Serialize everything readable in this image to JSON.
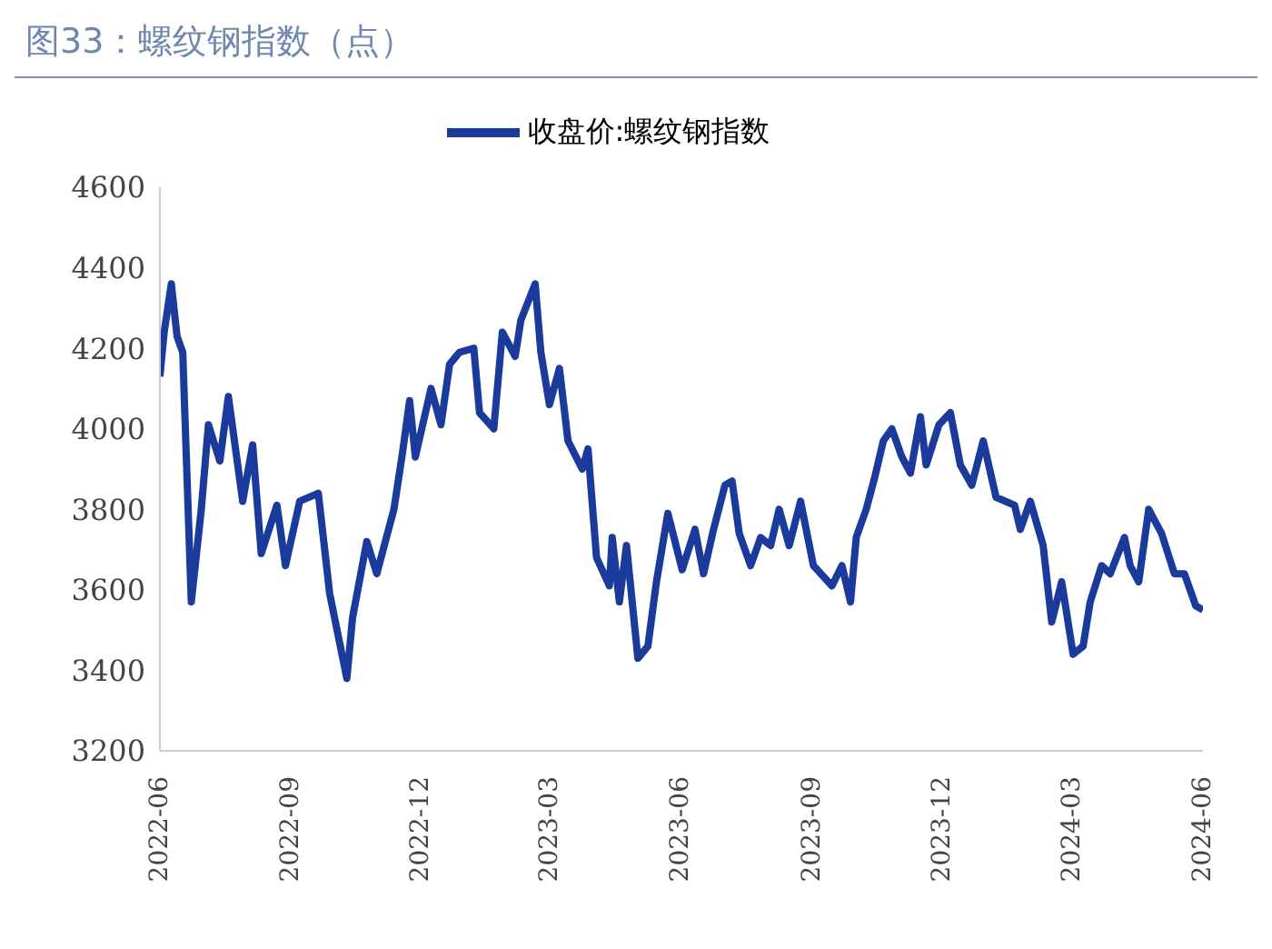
{
  "chart_data": {
    "type": "line",
    "title": "图33：螺纹钢指数（点）",
    "x": [
      "2022-06-01",
      "2022-06-04",
      "2022-06-09",
      "2022-06-13",
      "2022-06-17",
      "2022-06-23",
      "2022-06-30",
      "2022-07-05",
      "2022-07-13",
      "2022-07-19",
      "2022-07-29",
      "2022-08-05",
      "2022-08-11",
      "2022-08-22",
      "2022-08-28",
      "2022-09-07",
      "2022-09-20",
      "2022-09-28",
      "2022-10-10",
      "2022-10-14",
      "2022-10-24",
      "2022-10-31",
      "2022-11-12",
      "2022-11-18",
      "2022-11-23",
      "2022-11-27",
      "2022-12-08",
      "2022-12-15",
      "2022-12-21",
      "2022-12-28",
      "2023-01-07",
      "2023-01-11",
      "2023-01-21",
      "2023-01-27",
      "2023-02-05",
      "2023-02-09",
      "2023-02-19",
      "2023-02-23",
      "2023-03-01",
      "2023-03-08",
      "2023-03-14",
      "2023-03-24",
      "2023-03-28",
      "2023-04-03",
      "2023-04-12",
      "2023-04-14",
      "2023-04-19",
      "2023-04-24",
      "2023-05-02",
      "2023-05-09",
      "2023-05-15",
      "2023-05-23",
      "2023-06-02",
      "2023-06-11",
      "2023-06-17",
      "2023-06-24",
      "2023-07-02",
      "2023-07-07",
      "2023-07-12",
      "2023-07-20",
      "2023-07-27",
      "2023-08-03",
      "2023-08-09",
      "2023-08-16",
      "2023-08-24",
      "2023-09-02",
      "2023-09-15",
      "2023-09-22",
      "2023-09-28",
      "2023-10-02",
      "2023-10-09",
      "2023-10-15",
      "2023-10-21",
      "2023-10-27",
      "2023-11-03",
      "2023-11-09",
      "2023-11-16",
      "2023-11-20",
      "2023-11-29",
      "2023-12-07",
      "2023-12-14",
      "2023-12-22",
      "2023-12-30",
      "2024-01-08",
      "2024-01-21",
      "2024-01-25",
      "2024-02-01",
      "2024-02-10",
      "2024-02-16",
      "2024-02-23",
      "2024-03-02",
      "2024-03-09",
      "2024-03-14",
      "2024-03-22",
      "2024-03-28",
      "2024-04-07",
      "2024-04-11",
      "2024-04-17",
      "2024-04-24",
      "2024-05-03",
      "2024-05-12",
      "2024-05-19",
      "2024-05-27",
      "2024-06-01"
    ],
    "series": [
      {
        "name": "收盘价:螺纹钢指数",
        "color": "#1a3a9c",
        "values": [
          4130,
          4240,
          4360,
          4230,
          4190,
          3570,
          3800,
          4010,
          3920,
          4080,
          3820,
          3960,
          3690,
          3810,
          3660,
          3820,
          3840,
          3590,
          3380,
          3530,
          3720,
          3640,
          3800,
          3940,
          4070,
          3930,
          4100,
          4010,
          4160,
          4190,
          4200,
          4040,
          4000,
          4240,
          4180,
          4270,
          4360,
          4190,
          4060,
          4150,
          3970,
          3900,
          3950,
          3680,
          3610,
          3730,
          3570,
          3710,
          3430,
          3460,
          3620,
          3790,
          3650,
          3750,
          3640,
          3750,
          3860,
          3870,
          3740,
          3660,
          3730,
          3710,
          3800,
          3710,
          3820,
          3660,
          3610,
          3660,
          3570,
          3730,
          3800,
          3880,
          3970,
          4000,
          3930,
          3890,
          4030,
          3910,
          4010,
          4040,
          3910,
          3860,
          3970,
          3830,
          3810,
          3750,
          3820,
          3710,
          3520,
          3620,
          3440,
          3460,
          3570,
          3660,
          3640,
          3730,
          3660,
          3620,
          3800,
          3740,
          3640,
          3640,
          3560,
          3550
        ]
      }
    ],
    "xlim": [
      "2022-06",
      "2024-06"
    ],
    "xticks": [
      "2022-06",
      "2022-09",
      "2022-12",
      "2023-03",
      "2023-06",
      "2023-09",
      "2023-12",
      "2024-03",
      "2024-06"
    ],
    "ylim": [
      3200,
      4600
    ],
    "yticks": [
      3200,
      3400,
      3600,
      3800,
      4000,
      4200,
      4400,
      4600
    ],
    "grid": false,
    "legend": "top",
    "marker": "none",
    "line_style": "solid"
  }
}
